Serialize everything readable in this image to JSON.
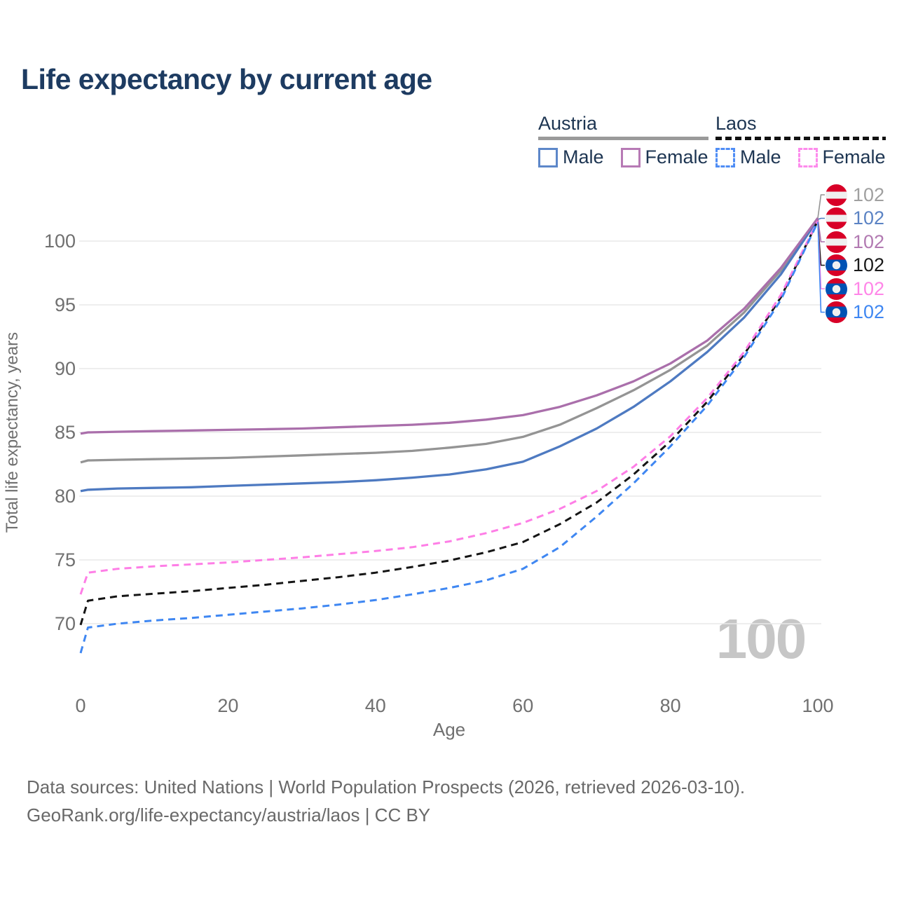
{
  "header": {
    "title": "Life expectancy by current age"
  },
  "legend": {
    "austria": {
      "title": "Austria",
      "male": "Male",
      "female": "Female"
    },
    "laos": {
      "title": "Laos",
      "male": "Male",
      "female": "Female"
    }
  },
  "chart_data": {
    "type": "line",
    "title": "Life expectancy by current age",
    "xlabel": "Age",
    "ylabel": "Total life expectancy, years",
    "xlim": [
      0,
      100
    ],
    "ylim": [
      66,
      103
    ],
    "xticks": [
      0,
      20,
      40,
      60,
      80,
      100
    ],
    "yticks": [
      70,
      75,
      80,
      85,
      90,
      95,
      100
    ],
    "grid": "horizontal-only",
    "age_cursor": "100",
    "x": [
      0,
      1,
      5,
      10,
      15,
      20,
      25,
      30,
      35,
      40,
      45,
      50,
      55,
      60,
      65,
      70,
      75,
      80,
      85,
      90,
      95,
      100
    ],
    "series": [
      {
        "id": "austria-total",
        "country": "Austria",
        "group": "Total",
        "style": "solid",
        "color": "#949494",
        "end_label": "102",
        "end_label_color": "#a0a0a0",
        "flag": "austria",
        "values": [
          82.65,
          82.8,
          82.85,
          82.9,
          82.95,
          83.0,
          83.1,
          83.2,
          83.3,
          83.4,
          83.55,
          83.8,
          84.1,
          84.65,
          85.6,
          86.9,
          88.3,
          89.9,
          91.8,
          94.4,
          97.7,
          101.8
        ]
      },
      {
        "id": "austria-male",
        "country": "Austria",
        "group": "Male",
        "style": "solid",
        "color": "#4e7ac1",
        "end_label": "102",
        "end_label_color": "#5b83c4",
        "flag": "austria",
        "values": [
          80.4,
          80.5,
          80.6,
          80.65,
          80.7,
          80.8,
          80.9,
          81.0,
          81.1,
          81.25,
          81.45,
          81.7,
          82.1,
          82.7,
          83.9,
          85.3,
          87.0,
          89.0,
          91.3,
          94.0,
          97.4,
          101.7
        ]
      },
      {
        "id": "austria-female",
        "country": "Austria",
        "group": "Female",
        "style": "solid",
        "color": "#aa6fab",
        "end_label": "102",
        "end_label_color": "#b27ab2",
        "flag": "austria",
        "values": [
          84.9,
          85.0,
          85.05,
          85.1,
          85.15,
          85.2,
          85.25,
          85.3,
          85.4,
          85.5,
          85.6,
          85.75,
          86.0,
          86.35,
          87.0,
          87.9,
          89.0,
          90.4,
          92.2,
          94.7,
          97.9,
          101.8
        ]
      },
      {
        "id": "laos-total",
        "country": "Laos",
        "group": "Total",
        "style": "dashed",
        "color": "#151515",
        "end_label": "102",
        "end_label_color": "#1a1a1a",
        "flag": "laos",
        "values": [
          69.9,
          71.8,
          72.15,
          72.35,
          72.55,
          72.8,
          73.05,
          73.35,
          73.65,
          74.0,
          74.45,
          74.95,
          75.6,
          76.4,
          77.8,
          79.5,
          81.7,
          84.3,
          87.4,
          91.1,
          95.6,
          101.6
        ]
      },
      {
        "id": "laos-female",
        "country": "Laos",
        "group": "Female",
        "style": "dashed",
        "color": "#fe7ee6",
        "end_label": "102",
        "end_label_color": "#ff86e8",
        "flag": "laos",
        "values": [
          72.3,
          74.0,
          74.3,
          74.5,
          74.65,
          74.8,
          75.0,
          75.2,
          75.45,
          75.7,
          76.0,
          76.45,
          77.1,
          77.9,
          79.0,
          80.4,
          82.3,
          84.7,
          87.7,
          91.3,
          95.8,
          101.6
        ]
      },
      {
        "id": "laos-male",
        "country": "Laos",
        "group": "Male",
        "style": "dashed",
        "color": "#3f87f2",
        "end_label": "102",
        "end_label_color": "#3f87f2",
        "flag": "laos",
        "values": [
          67.7,
          69.7,
          70.0,
          70.25,
          70.45,
          70.7,
          70.95,
          71.2,
          71.5,
          71.85,
          72.3,
          72.8,
          73.4,
          74.3,
          76.0,
          78.4,
          81.0,
          83.9,
          87.1,
          90.9,
          95.4,
          101.5
        ]
      }
    ],
    "end_label_order": [
      "austria-total",
      "austria-male",
      "austria-female",
      "laos-total",
      "laos-female",
      "laos-male"
    ],
    "legend_position": "top-right"
  },
  "footer": {
    "line1": "Data sources: United Nations | World Population Prospects (2026, retrieved 2026-03-10).",
    "line2": "GeoRank.org/life-expectancy/austria/laos | CC BY"
  }
}
